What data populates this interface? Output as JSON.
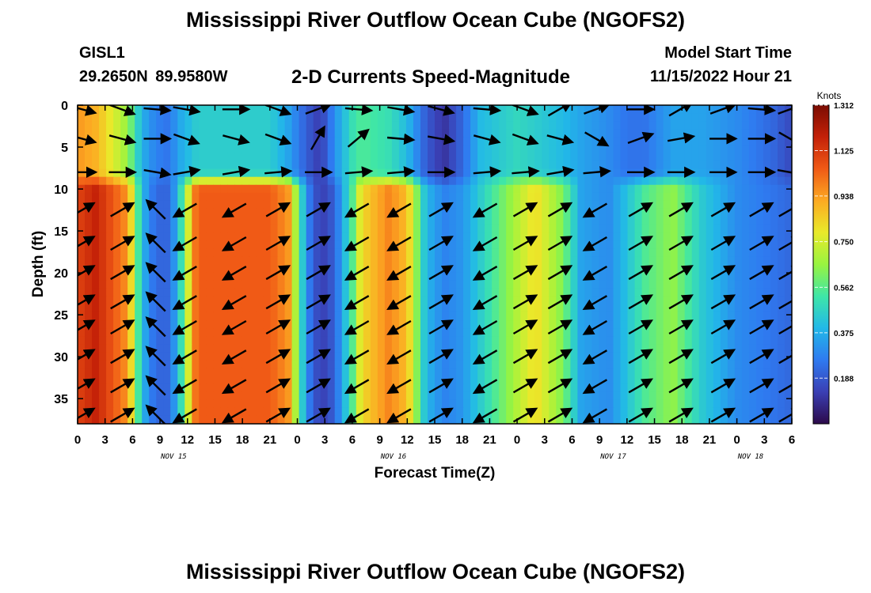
{
  "header": {
    "title": "Mississippi River Outflow Ocean Cube (NGOFS2)",
    "station": "GISL1",
    "coords": "29.2650N  89.9580W",
    "plot_title": "2-D Currents Speed-Magnitude",
    "model_start_label": "Model Start Time",
    "model_start_value": "11/15/2022 Hour 21"
  },
  "footer": {
    "title": "Mississippi River Outflow Ocean Cube (NGOFS2)"
  },
  "chart_data": {
    "type": "heatmap",
    "title": "2-D Currents Speed-Magnitude",
    "xlabel": "Forecast Time(Z)",
    "ylabel": "Depth (ft)",
    "colorbar_label": "Knots",
    "x_range_hours": [
      0,
      78
    ],
    "y_range_ft": [
      0,
      38
    ],
    "x_ticks": [
      "0",
      "3",
      "6",
      "9",
      "12",
      "15",
      "18",
      "21",
      "0",
      "3",
      "6",
      "9",
      "12",
      "15",
      "18",
      "21",
      "0",
      "3",
      "6",
      "9",
      "12",
      "15",
      "18",
      "21",
      "0",
      "3",
      "6"
    ],
    "date_labels": [
      {
        "label": "NOV 15",
        "hour": 10.5
      },
      {
        "label": "NOV 16",
        "hour": 34.5
      },
      {
        "label": "NOV 17",
        "hour": 58.5
      },
      {
        "label": "NOV 18",
        "hour": 73.5
      }
    ],
    "y_ticks": [
      0,
      5,
      10,
      15,
      20,
      25,
      30,
      35
    ],
    "colorbar_ticks": [
      "1.312",
      "1.125",
      "0.938",
      "0.750",
      "0.562",
      "0.375",
      "0.188"
    ],
    "colorbar_range": [
      0.0,
      1.312
    ],
    "colormap": [
      "#2c0a4a",
      "#3a3fb4",
      "#2f7af0",
      "#22b8e8",
      "#3ee6a8",
      "#98f440",
      "#e9ea2a",
      "#fcaa22",
      "#f05a16",
      "#c42108",
      "#7a0c02"
    ],
    "speed_profiles": {
      "hours": [
        0,
        2,
        5.5,
        7,
        8.5,
        10,
        11,
        13,
        21,
        23,
        25,
        26.5,
        28,
        30,
        31,
        34,
        36,
        38,
        40,
        42,
        44,
        48,
        50,
        53,
        55,
        58,
        60,
        62,
        65,
        68,
        72,
        76,
        78
      ],
      "lower_speed": [
        1.1,
        1.18,
        0.95,
        0.4,
        0.22,
        0.22,
        0.4,
        1.05,
        1.05,
        0.95,
        0.3,
        0.12,
        0.2,
        0.55,
        0.82,
        0.98,
        0.88,
        0.4,
        0.28,
        0.32,
        0.45,
        0.7,
        0.82,
        0.62,
        0.35,
        0.3,
        0.42,
        0.55,
        0.65,
        0.45,
        0.3,
        0.25,
        0.22
      ],
      "upper_speed": [
        0.95,
        0.9,
        0.65,
        0.38,
        0.28,
        0.25,
        0.35,
        0.45,
        0.45,
        0.35,
        0.2,
        0.12,
        0.3,
        0.5,
        0.55,
        0.5,
        0.4,
        0.2,
        0.1,
        0.22,
        0.4,
        0.48,
        0.45,
        0.4,
        0.35,
        0.3,
        0.25,
        0.25,
        0.35,
        0.35,
        0.3,
        0.22,
        0.15
      ],
      "transition_depth_ft": [
        8,
        10
      ]
    },
    "vectors": {
      "columns_hours": [
        0.5,
        4.8,
        8.6,
        11.8,
        17.2,
        21.8,
        26.2,
        30.6,
        35.2,
        39.6,
        44.6,
        48.8,
        52.6,
        56.6,
        61.4,
        65.8,
        70.4,
        74.6,
        77.8
      ],
      "rows_ft": [
        0.5,
        4,
        8,
        12.5,
        16.5,
        20,
        23.5,
        26.5,
        30,
        33.5,
        37
      ],
      "upper_dir": [
        [
          15,
          20,
          5,
          10,
          0,
          20,
          -20,
          5,
          10,
          15,
          5,
          20,
          -30,
          -20,
          0,
          -30,
          -20,
          5,
          -20
        ],
        [
          15,
          15,
          0,
          20,
          15,
          20,
          -60,
          -40,
          5,
          10,
          15,
          20,
          15,
          30,
          -20,
          -10,
          0,
          0,
          30
        ],
        [
          0,
          0,
          10,
          -10,
          -10,
          -5,
          0,
          -5,
          -5,
          0,
          -5,
          -5,
          -10,
          -5,
          0,
          0,
          0,
          0,
          10
        ]
      ],
      "lower_dir": [
        -30,
        -30,
        -135,
        150,
        150,
        -30,
        -30,
        150,
        150,
        -30,
        150,
        -30,
        -30,
        150,
        -30,
        -30,
        -30,
        -30,
        -30
      ]
    }
  }
}
